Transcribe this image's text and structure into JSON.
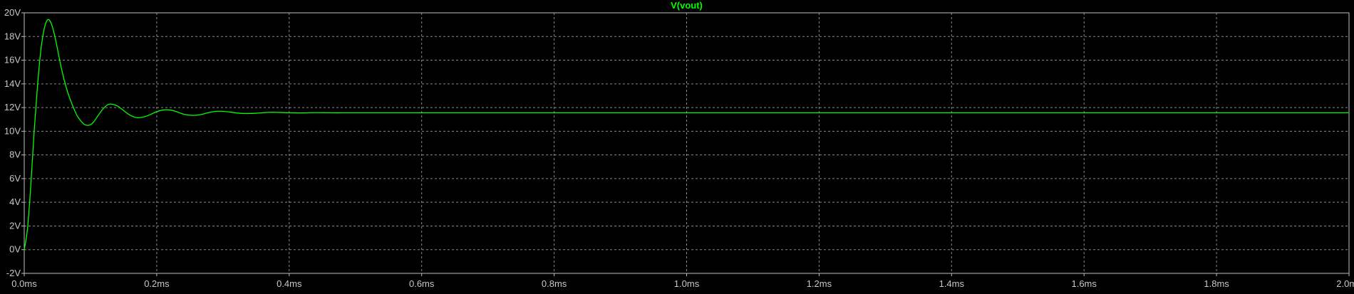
{
  "window": {
    "background": "#000000",
    "axis_color": "#bfbfbf",
    "text_color": "#c8c8c8",
    "grid_color": "#8a8a8a"
  },
  "chart_data": {
    "type": "line",
    "title": "V(vout)",
    "title_color": "#00ff00",
    "xlabel": "",
    "ylabel": "",
    "xlim": [
      0,
      2.0
    ],
    "ylim": [
      -2,
      20
    ],
    "x_unit": "ms",
    "y_unit": "V",
    "x_ticks": [
      0.0,
      0.2,
      0.4,
      0.6,
      0.8,
      1.0,
      1.2,
      1.4,
      1.6,
      1.8,
      2.0
    ],
    "x_tick_labels": [
      "0.0ms",
      "0.2ms",
      "0.4ms",
      "0.6ms",
      "0.8ms",
      "1.0ms",
      "1.2ms",
      "1.4ms",
      "1.6ms",
      "1.8ms",
      "2.0ms"
    ],
    "y_ticks": [
      -2,
      0,
      2,
      4,
      6,
      8,
      10,
      12,
      14,
      16,
      18,
      20
    ],
    "y_tick_labels": [
      "-2V",
      "0V",
      "2V",
      "4V",
      "6V",
      "8V",
      "10V",
      "12V",
      "14V",
      "16V",
      "18V",
      "20V"
    ],
    "grid": true,
    "grid_style": "dashed",
    "series": [
      {
        "name": "V(vout)",
        "color": "#00ff00",
        "x": [
          0.0,
          0.005,
          0.01,
          0.015,
          0.02,
          0.025,
          0.03,
          0.035,
          0.04,
          0.045,
          0.05,
          0.055,
          0.06,
          0.065,
          0.07,
          0.075,
          0.08,
          0.085,
          0.09,
          0.095,
          0.1,
          0.105,
          0.11,
          0.115,
          0.12,
          0.125,
          0.13,
          0.14,
          0.15,
          0.16,
          0.17,
          0.18,
          0.19,
          0.2,
          0.21,
          0.22,
          0.23,
          0.24,
          0.25,
          0.26,
          0.27,
          0.28,
          0.29,
          0.3,
          0.31,
          0.32,
          0.33,
          0.34,
          0.35,
          0.36,
          0.37,
          0.38,
          0.39,
          0.4,
          0.41,
          0.42,
          0.43,
          0.44,
          0.45,
          0.46,
          0.48,
          0.5,
          0.55,
          0.6,
          0.7,
          0.8,
          1.0,
          1.2,
          1.4,
          1.6,
          1.8,
          2.0
        ],
        "y": [
          0.0,
          1.8,
          5.5,
          10.0,
          13.8,
          16.8,
          18.6,
          19.4,
          19.2,
          18.3,
          17.0,
          15.6,
          14.4,
          13.4,
          12.6,
          11.9,
          11.3,
          10.9,
          10.6,
          10.5,
          10.55,
          10.8,
          11.2,
          11.6,
          11.95,
          12.2,
          12.3,
          12.15,
          11.75,
          11.35,
          11.15,
          11.2,
          11.4,
          11.65,
          11.8,
          11.8,
          11.65,
          11.45,
          11.35,
          11.35,
          11.45,
          11.6,
          11.68,
          11.68,
          11.62,
          11.55,
          11.5,
          11.5,
          11.52,
          11.56,
          11.6,
          11.6,
          11.58,
          11.56,
          11.55,
          11.55,
          11.56,
          11.57,
          11.57,
          11.56,
          11.56,
          11.56,
          11.56,
          11.56,
          11.56,
          11.56,
          11.56,
          11.56,
          11.56,
          11.56,
          11.56,
          11.56
        ]
      }
    ]
  }
}
